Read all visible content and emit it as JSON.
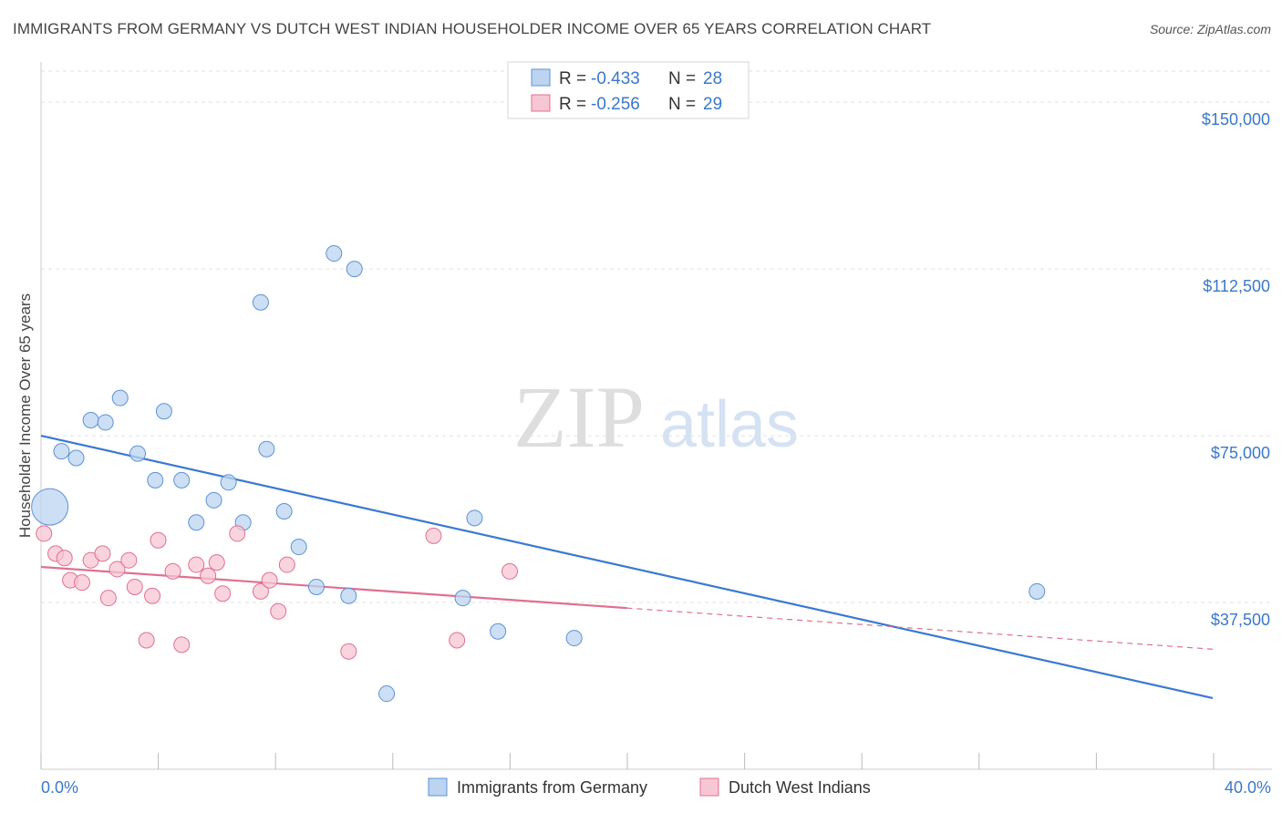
{
  "header": {
    "title": "IMMIGRANTS FROM GERMANY VS DUTCH WEST INDIAN HOUSEHOLDER INCOME OVER 65 YEARS CORRELATION CHART",
    "source": "Source: ZipAtlas.com"
  },
  "watermark": {
    "zip": "ZIP",
    "atlas": "atlas"
  },
  "legend": {
    "rows": [
      {
        "r_label": "R = ",
        "r_value": "-0.433",
        "n_label": "N = ",
        "n_value": "28"
      },
      {
        "r_label": "R = ",
        "r_value": "-0.256",
        "n_label": "N = ",
        "n_value": "29"
      }
    ]
  },
  "chart_data": {
    "type": "scatter",
    "title": "IMMIGRANTS FROM GERMANY VS DUTCH WEST INDIAN HOUSEHOLDER INCOME OVER 65 YEARS CORRELATION CHART",
    "xlabel": "",
    "ylabel": "Householder Income Over 65 years",
    "xlim": [
      0,
      40
    ],
    "ylim": [
      0,
      157000
    ],
    "x_tick_labels": [
      "0.0%",
      "40.0%"
    ],
    "y_ticks": [
      37500,
      75000,
      112500,
      150000
    ],
    "y_tick_labels": [
      "$37,500",
      "$75,000",
      "$112,500",
      "$150,000"
    ],
    "grid": true,
    "series": [
      {
        "name": "Immigrants from Germany",
        "color": "#5b93d6",
        "fill": "#bcd4f0",
        "r": -0.433,
        "n": 28,
        "trend": {
          "x0": 0,
          "y0": 75000,
          "x1": 40,
          "y1": 16000,
          "dashed_from": null
        },
        "points": [
          [
            0.3,
            59000
          ],
          [
            0.7,
            71500
          ],
          [
            1.2,
            70000
          ],
          [
            1.7,
            78500
          ],
          [
            2.2,
            78000
          ],
          [
            2.7,
            83500
          ],
          [
            3.3,
            71000
          ],
          [
            3.9,
            65000
          ],
          [
            4.2,
            80500
          ],
          [
            4.8,
            65000
          ],
          [
            5.3,
            55500
          ],
          [
            5.9,
            60500
          ],
          [
            6.4,
            64500
          ],
          [
            6.9,
            55500
          ],
          [
            7.5,
            105000
          ],
          [
            7.7,
            72000
          ],
          [
            8.3,
            58000
          ],
          [
            8.8,
            50000
          ],
          [
            9.4,
            41000
          ],
          [
            10.0,
            116000
          ],
          [
            10.5,
            39000
          ],
          [
            10.7,
            112500
          ],
          [
            11.8,
            17000
          ],
          [
            14.4,
            38500
          ],
          [
            14.8,
            56500
          ],
          [
            15.6,
            31000
          ],
          [
            18.2,
            29500
          ],
          [
            34.0,
            40000
          ]
        ]
      },
      {
        "name": "Dutch West Indians",
        "color": "#e0708f",
        "fill": "#f7c6d4",
        "r": -0.256,
        "n": 29,
        "trend": {
          "x0": 0,
          "y0": 45500,
          "x1": 40,
          "y1": 27000,
          "dashed_from": 20
        },
        "points": [
          [
            0.1,
            53000
          ],
          [
            0.5,
            48500
          ],
          [
            0.8,
            47500
          ],
          [
            1.0,
            42500
          ],
          [
            1.4,
            42000
          ],
          [
            1.7,
            47000
          ],
          [
            2.1,
            48500
          ],
          [
            2.3,
            38500
          ],
          [
            2.6,
            45000
          ],
          [
            3.0,
            47000
          ],
          [
            3.2,
            41000
          ],
          [
            3.6,
            29000
          ],
          [
            3.8,
            39000
          ],
          [
            4.0,
            51500
          ],
          [
            4.5,
            44500
          ],
          [
            4.8,
            28000
          ],
          [
            5.3,
            46000
          ],
          [
            5.7,
            43500
          ],
          [
            6.0,
            46500
          ],
          [
            6.2,
            39500
          ],
          [
            6.7,
            53000
          ],
          [
            7.5,
            40000
          ],
          [
            7.8,
            42500
          ],
          [
            8.1,
            35500
          ],
          [
            8.4,
            46000
          ],
          [
            10.5,
            26500
          ],
          [
            13.4,
            52500
          ],
          [
            14.2,
            29000
          ],
          [
            16.0,
            44500
          ]
        ]
      }
    ]
  },
  "bottom_legend": [
    {
      "label": "Immigrants from Germany"
    },
    {
      "label": "Dutch West Indians"
    }
  ],
  "colors": {
    "blue_line": "#3a78d4",
    "pink_line": "#e0708f",
    "tick_text": "#3a78c9",
    "grid": "#dddddd"
  }
}
